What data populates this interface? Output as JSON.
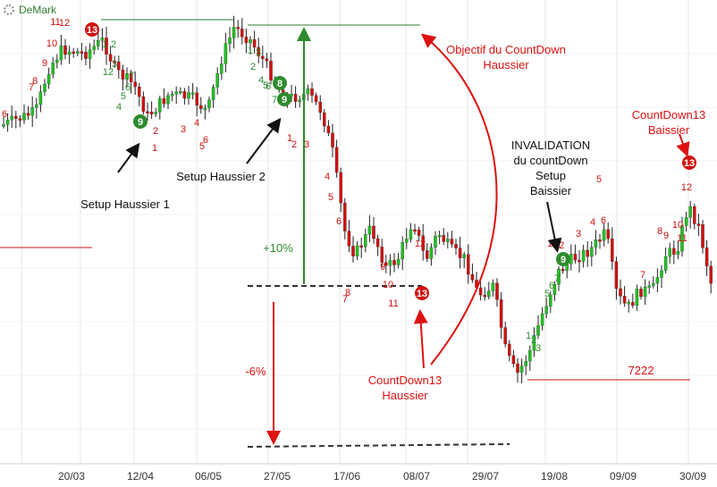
{
  "header": {
    "title": "DeMark",
    "icon": "gear-icon"
  },
  "colors": {
    "up": "#22c022",
    "down": "#d01010",
    "green_count": "#2e8b2e",
    "red_count": "#d01010",
    "annotation_red": "#dd1111",
    "annotation_black": "#111111",
    "grid": "#e6e6e6"
  },
  "chart_data": {
    "type": "candlestick",
    "x_tick_labels": [
      "20/03",
      "12/04",
      "06/05",
      "27/05",
      "17/06",
      "08/07",
      "29/07",
      "19/08",
      "09/09",
      "30/09"
    ],
    "price_level_label": "7222",
    "annotations": [
      {
        "id": "setup-haussier-1",
        "text": [
          "Setup Haussier 1"
        ],
        "color": "black"
      },
      {
        "id": "setup-haussier-2",
        "text": [
          "Setup Haussier 2"
        ],
        "color": "black"
      },
      {
        "id": "objectif",
        "text": [
          "Objectif du CountDown",
          "Haussier"
        ],
        "color": "red"
      },
      {
        "id": "plus10",
        "text": [
          "+10%"
        ],
        "color": "green"
      },
      {
        "id": "minus6",
        "text": [
          "-6%"
        ],
        "color": "red"
      },
      {
        "id": "countdown-haussier",
        "text": [
          "CountDown13",
          "Haussier"
        ],
        "color": "red"
      },
      {
        "id": "invalidation",
        "text": [
          "INVALIDATION",
          "du countDown",
          "Setup",
          "Baissier"
        ],
        "color": "black"
      },
      {
        "id": "countdown-baissier",
        "text": [
          "CountDown13",
          "Baissier"
        ],
        "color": "red"
      }
    ],
    "setup_counts": [
      {
        "label": "6",
        "color": "red"
      },
      {
        "label": "7",
        "color": "red"
      },
      {
        "label": "8",
        "color": "red"
      },
      {
        "label": "9",
        "color": "red"
      },
      {
        "label": "10",
        "color": "red"
      },
      {
        "label": "11",
        "color": "red"
      },
      {
        "label": "12",
        "color": "red"
      },
      {
        "label": "13",
        "color": "red",
        "badge": true
      },
      {
        "label": "1",
        "color": "green"
      },
      {
        "label": "2",
        "color": "green"
      },
      {
        "label": "3",
        "color": "green"
      },
      {
        "label": "4",
        "color": "green"
      },
      {
        "label": "5",
        "color": "green"
      },
      {
        "label": "6",
        "color": "green"
      },
      {
        "label": "7",
        "color": "green"
      },
      {
        "label": "9",
        "color": "green",
        "badge": true
      },
      {
        "label": "12",
        "color": "green"
      },
      {
        "label": "1",
        "color": "red"
      },
      {
        "label": "2",
        "color": "red"
      },
      {
        "label": "3",
        "color": "red"
      },
      {
        "label": "4",
        "color": "red"
      },
      {
        "label": "5",
        "color": "red"
      },
      {
        "label": "6",
        "color": "red"
      },
      {
        "label": "1",
        "color": "green"
      },
      {
        "label": "2",
        "color": "green"
      },
      {
        "label": "3",
        "color": "green"
      },
      {
        "label": "4",
        "color": "green"
      },
      {
        "label": "5",
        "color": "green"
      },
      {
        "label": "6",
        "color": "green"
      },
      {
        "label": "7",
        "color": "green"
      },
      {
        "label": "8",
        "color": "green",
        "badge": true
      },
      {
        "label": "9",
        "color": "green",
        "badge": true
      },
      {
        "label": "1",
        "color": "red"
      },
      {
        "label": "2",
        "color": "red"
      },
      {
        "label": "3",
        "color": "red"
      },
      {
        "label": "4",
        "color": "red"
      },
      {
        "label": "5",
        "color": "red"
      },
      {
        "label": "6",
        "color": "red"
      },
      {
        "label": "7",
        "color": "red"
      },
      {
        "label": "8",
        "color": "red"
      },
      {
        "label": "9",
        "color": "red"
      },
      {
        "label": "10",
        "color": "red"
      },
      {
        "label": "11",
        "color": "red"
      },
      {
        "label": "12",
        "color": "red"
      },
      {
        "label": "13",
        "color": "red",
        "badge": true
      },
      {
        "label": "1",
        "color": "green"
      },
      {
        "label": "2",
        "color": "green"
      },
      {
        "label": "3",
        "color": "green"
      },
      {
        "label": "5",
        "color": "green"
      },
      {
        "label": "6",
        "color": "green"
      },
      {
        "label": "7",
        "color": "green"
      },
      {
        "label": "9",
        "color": "green",
        "badge": true
      },
      {
        "label": "1",
        "color": "red"
      },
      {
        "label": "2",
        "color": "red"
      },
      {
        "label": "3",
        "color": "red"
      },
      {
        "label": "4",
        "color": "red"
      },
      {
        "label": "5",
        "color": "red"
      },
      {
        "label": "6",
        "color": "red"
      },
      {
        "label": "7",
        "color": "red"
      },
      {
        "label": "8",
        "color": "red"
      },
      {
        "label": "9",
        "color": "red"
      },
      {
        "label": "10",
        "color": "red"
      },
      {
        "label": "11",
        "color": "red"
      },
      {
        "label": "12",
        "color": "red"
      },
      {
        "label": "13",
        "color": "red",
        "badge": true
      }
    ]
  }
}
